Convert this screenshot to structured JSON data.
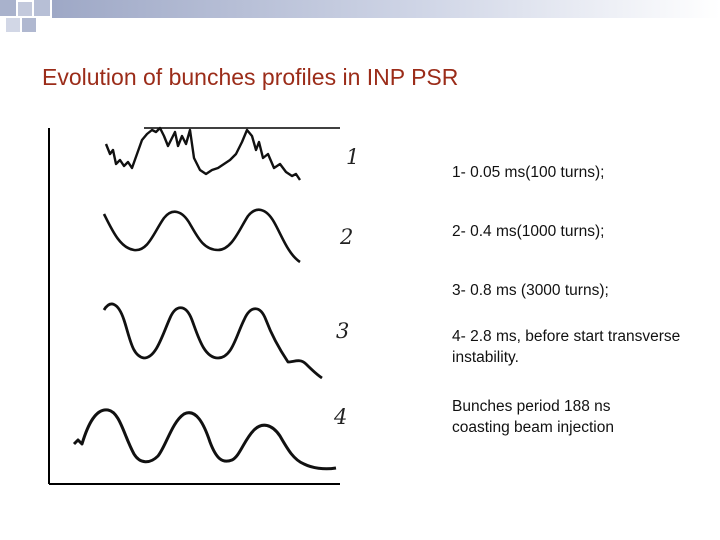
{
  "slide": {
    "title": "Evolution of bunches profiles in INP PSR",
    "profile_numbers": [
      "1",
      "2",
      "3",
      "4"
    ],
    "legend_items": [
      {
        "text": "1- 0.05 ms(100 turns);"
      },
      {
        "text": "2-  0.4 ms(1000 turns);"
      },
      {
        "text": "3-  0.8 ms (3000 turns);"
      },
      {
        "text": "4-  2.8 ms, before start transverse instability."
      }
    ],
    "note_lines": [
      "Bunches period 188 ns",
      "coasting beam injection"
    ]
  }
}
